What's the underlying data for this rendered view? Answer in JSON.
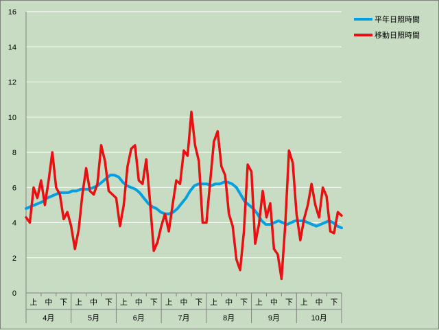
{
  "chart_data": {
    "type": "line",
    "title": "",
    "xlabel": "",
    "ylabel": "",
    "ylim": [
      0,
      16
    ],
    "yticks": [
      "0",
      "2",
      "4",
      "6",
      "8",
      "10",
      "12",
      "14",
      "16"
    ],
    "grid": true,
    "legend_position": "top-right",
    "months": [
      "4月",
      "5月",
      "6月",
      "7月",
      "8月",
      "9月",
      "10月"
    ],
    "dekads": [
      "上",
      "中",
      "下"
    ],
    "series": [
      {
        "name": "平年日照時間",
        "color": "#00a0e0",
        "values": [
          4.8,
          4.9,
          5.0,
          5.1,
          5.2,
          5.4,
          5.5,
          5.6,
          5.7,
          5.7,
          5.7,
          5.8,
          5.8,
          5.9,
          5.9,
          5.9,
          6.0,
          6.1,
          6.3,
          6.5,
          6.7,
          6.7,
          6.6,
          6.3,
          6.1,
          6.0,
          5.9,
          5.7,
          5.4,
          5.1,
          4.9,
          4.8,
          4.6,
          4.5,
          4.5,
          4.6,
          4.8,
          5.1,
          5.4,
          5.8,
          6.1,
          6.2,
          6.2,
          6.2,
          6.1,
          6.2,
          6.2,
          6.3,
          6.3,
          6.2,
          6.0,
          5.6,
          5.2,
          5.0,
          4.8,
          4.5,
          4.1,
          3.9,
          3.9,
          4.0,
          4.1,
          4.0,
          3.9,
          4.0,
          4.1,
          4.1,
          4.1,
          4.0,
          3.9,
          3.8,
          3.9,
          4.0,
          4.1,
          4.0,
          3.8,
          3.7
        ]
      },
      {
        "name": "移動日照時間",
        "color": "#e81010",
        "values": [
          4.3,
          4.0,
          6.0,
          5.4,
          6.4,
          5.0,
          6.4,
          8.0,
          6.0,
          5.6,
          4.2,
          4.6,
          3.8,
          2.5,
          3.6,
          5.6,
          7.1,
          5.8,
          5.6,
          6.2,
          8.4,
          7.5,
          5.8,
          5.6,
          5.4,
          3.8,
          5.0,
          7.2,
          8.2,
          8.4,
          6.4,
          6.2,
          7.6,
          5.2,
          2.4,
          2.9,
          3.8,
          4.5,
          3.5,
          5.0,
          6.4,
          6.2,
          8.1,
          7.8,
          10.3,
          8.4,
          7.5,
          4.0,
          4.0,
          6.3,
          8.6,
          9.2,
          7.2,
          6.7,
          4.5,
          3.8,
          1.9,
          1.3,
          3.5,
          7.3,
          6.9,
          2.8,
          3.9,
          5.8,
          4.3,
          5.1,
          2.5,
          2.2,
          0.8,
          3.9,
          8.1,
          7.4,
          4.5,
          3.0,
          4.2,
          5.0,
          6.2,
          5.0,
          4.3,
          6.0,
          5.5,
          3.5,
          3.4,
          4.6,
          4.4
        ]
      }
    ]
  }
}
